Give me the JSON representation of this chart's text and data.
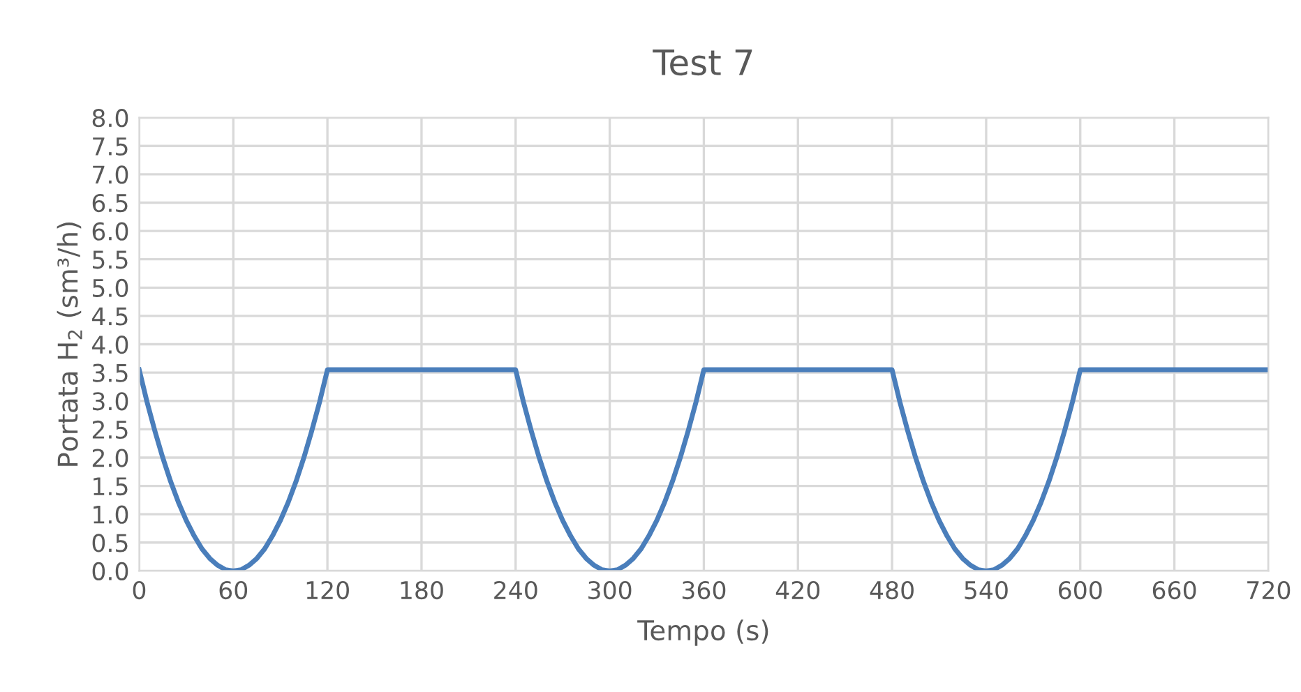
{
  "chart_data": {
    "type": "line",
    "title": "Test 7",
    "xlabel": "Tempo (s)",
    "ylabel": "Portata H$_{2}$ (sm³/h)",
    "x": [
      0,
      5,
      10,
      15,
      20,
      25,
      30,
      35,
      40,
      45,
      50,
      55,
      60,
      65,
      70,
      75,
      80,
      85,
      90,
      95,
      100,
      105,
      110,
      115,
      120,
      240,
      245,
      250,
      255,
      260,
      265,
      270,
      275,
      280,
      285,
      290,
      295,
      300,
      305,
      310,
      315,
      320,
      325,
      330,
      335,
      340,
      345,
      350,
      355,
      360,
      480,
      485,
      490,
      495,
      500,
      505,
      510,
      515,
      520,
      525,
      530,
      535,
      540,
      545,
      550,
      555,
      560,
      565,
      570,
      575,
      580,
      585,
      590,
      595,
      600,
      720
    ],
    "series": [
      {
        "color": "#4a7ebb",
        "values": [
          3.55,
          2.98,
          2.47,
          2,
          1.58,
          1.21,
          0.89,
          0.62,
          0.39,
          0.22,
          0.1,
          0.02,
          0,
          0.02,
          0.1,
          0.22,
          0.39,
          0.62,
          0.89,
          1.21,
          1.58,
          2,
          2.47,
          2.98,
          3.55,
          3.55,
          2.98,
          2.47,
          2,
          1.58,
          1.21,
          0.89,
          0.62,
          0.39,
          0.22,
          0.1,
          0.02,
          0,
          0.02,
          0.1,
          0.22,
          0.39,
          0.62,
          0.89,
          1.21,
          1.58,
          2,
          2.47,
          2.98,
          3.55,
          3.55,
          2.98,
          2.47,
          2,
          1.58,
          1.21,
          0.89,
          0.62,
          0.39,
          0.22,
          0.1,
          0.02,
          0,
          0.02,
          0.1,
          0.22,
          0.39,
          0.62,
          0.89,
          1.21,
          1.58,
          2,
          2.47,
          2.98,
          3.55,
          3.55
        ]
      }
    ],
    "xlim": [
      0,
      720
    ],
    "xticks": [
      0,
      60,
      120,
      180,
      240,
      300,
      360,
      420,
      480,
      540,
      600,
      660,
      720
    ],
    "ylim": [
      0,
      8
    ],
    "yticks": [
      {
        "value": 0,
        "label": "0.0"
      },
      0.5,
      {
        "value": 1,
        "label": "1.0"
      },
      1.5,
      {
        "value": 2,
        "label": "2.0"
      },
      2.5,
      {
        "value": 3,
        "label": "3.0"
      },
      3.5,
      {
        "value": 4,
        "label": "4.0"
      },
      4.5,
      {
        "value": 5,
        "label": "5.0"
      },
      5.5,
      {
        "value": 6,
        "label": "6.0"
      },
      6.5,
      {
        "value": 7,
        "label": "7.0"
      },
      7.5,
      {
        "value": 8,
        "label": "8.0"
      }
    ],
    "grid": true,
    "marker": "none",
    "line_style": "solid"
  }
}
